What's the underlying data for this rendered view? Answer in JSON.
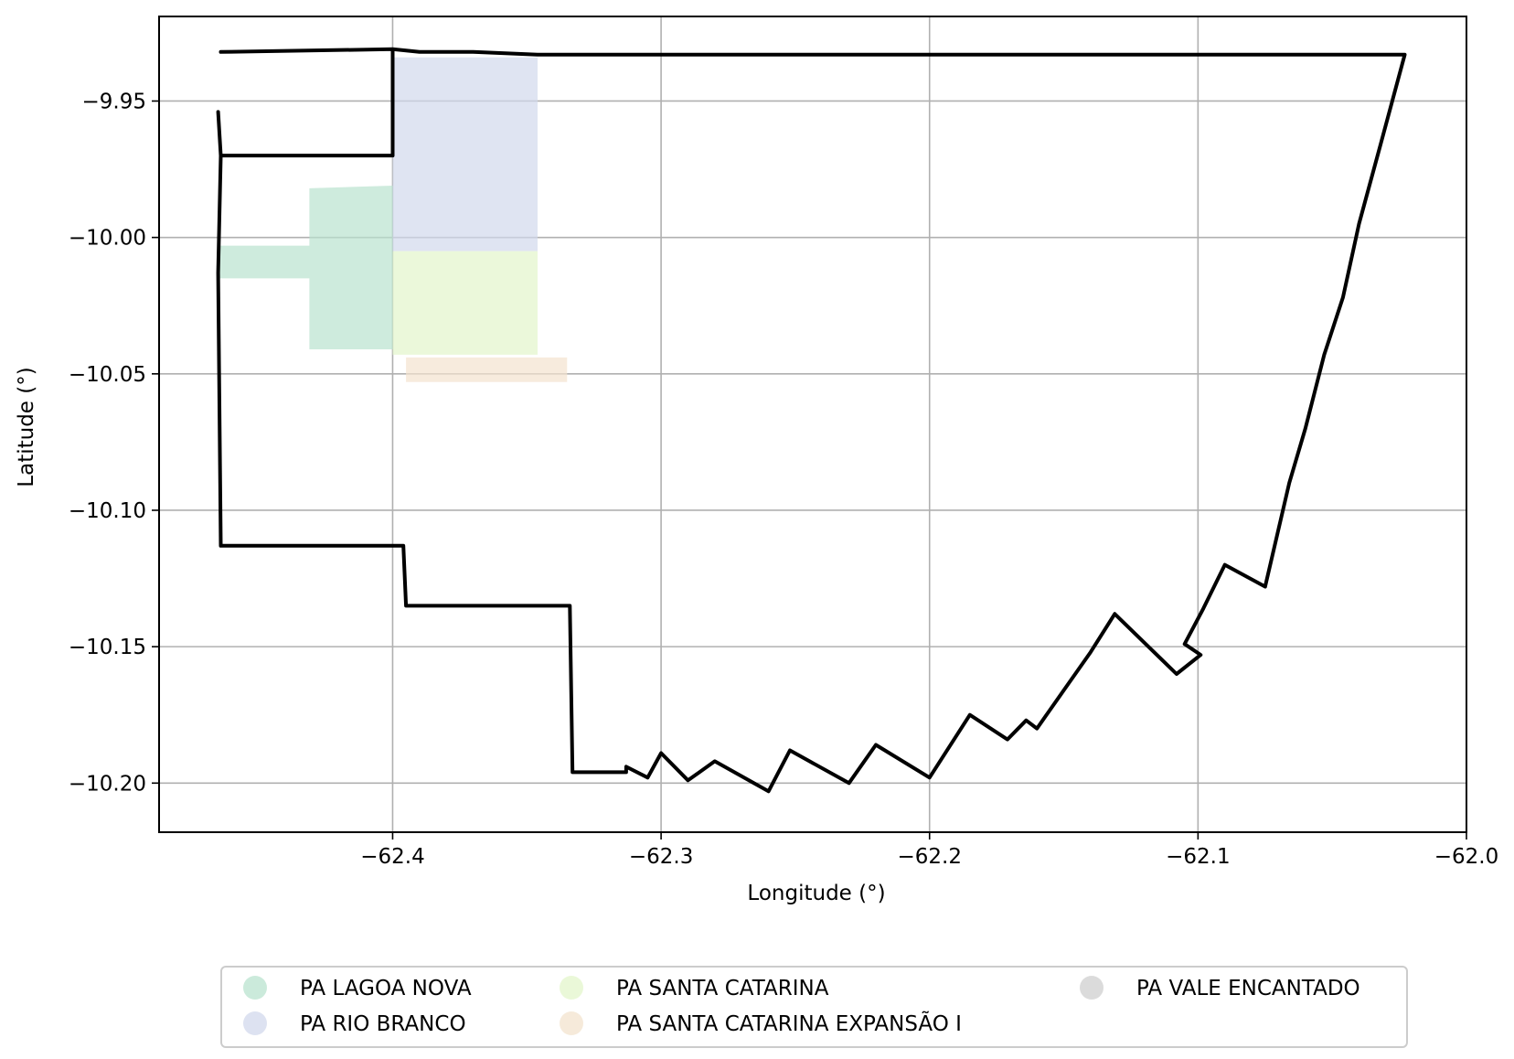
{
  "chart_data": {
    "type": "map",
    "xlabel": "Longitude (°)",
    "ylabel": "Latitude (°)",
    "xlim": [
      -62.487,
      -62.0
    ],
    "ylim": [
      -10.218,
      -9.919
    ],
    "x_ticks": [
      -62.4,
      -62.3,
      -62.2,
      -62.1,
      -62.0
    ],
    "x_tick_labels": [
      "−62.4",
      "−62.3",
      "−62.2",
      "−62.1",
      "−62.0"
    ],
    "y_ticks": [
      -9.95,
      -10.0,
      -10.05,
      -10.1,
      -10.15,
      -10.2
    ],
    "y_tick_labels": [
      "−9.95",
      "−10.00",
      "−10.05",
      "−10.10",
      "−10.15",
      "−10.20"
    ],
    "grid": true,
    "legend_position": "bottom-center",
    "boundary": {
      "color": "#000000",
      "coordinates": [
        [
          -62.464,
          -9.932
        ],
        [
          -62.4,
          -9.931
        ],
        [
          -62.39,
          -9.932
        ],
        [
          -62.37,
          -9.932
        ],
        [
          -62.346,
          -9.933
        ],
        [
          -62.3,
          -9.933
        ],
        [
          -62.2,
          -9.933
        ],
        [
          -62.1,
          -9.933
        ],
        [
          -62.023,
          -9.933
        ],
        [
          -62.032,
          -9.966
        ],
        [
          -62.04,
          -9.995
        ],
        [
          -62.046,
          -10.022
        ],
        [
          -62.053,
          -10.043
        ],
        [
          -62.06,
          -10.07
        ],
        [
          -62.066,
          -10.09
        ],
        [
          -62.075,
          -10.128
        ],
        [
          -62.09,
          -10.12
        ],
        [
          -62.098,
          -10.136
        ],
        [
          -62.105,
          -10.149
        ],
        [
          -62.099,
          -10.153
        ],
        [
          -62.108,
          -10.16
        ],
        [
          -62.131,
          -10.138
        ],
        [
          -62.14,
          -10.152
        ],
        [
          -62.15,
          -10.166
        ],
        [
          -62.16,
          -10.18
        ],
        [
          -62.164,
          -10.177
        ],
        [
          -62.171,
          -10.184
        ],
        [
          -62.185,
          -10.175
        ],
        [
          -62.2,
          -10.198
        ],
        [
          -62.2,
          -10.198
        ],
        [
          -62.22,
          -10.186
        ],
        [
          -62.23,
          -10.2
        ],
        [
          -62.252,
          -10.188
        ],
        [
          -62.26,
          -10.203
        ],
        [
          -62.28,
          -10.192
        ],
        [
          -62.29,
          -10.199
        ],
        [
          -62.3,
          -10.189
        ],
        [
          -62.305,
          -10.198
        ],
        [
          -62.313,
          -10.194
        ],
        [
          -62.313,
          -10.196
        ],
        [
          -62.333,
          -10.196
        ],
        [
          -62.334,
          -10.135
        ],
        [
          -62.395,
          -10.135
        ],
        [
          -62.396,
          -10.113
        ],
        [
          -62.464,
          -10.113
        ],
        [
          -62.465,
          -10.013
        ],
        [
          -62.464,
          -9.97
        ],
        [
          -62.465,
          -9.954
        ]
      ],
      "spur": [
        [
          -62.464,
          -9.97
        ],
        [
          -62.4,
          -9.97
        ],
        [
          -62.4,
          -9.931
        ]
      ]
    },
    "series": [
      {
        "name": "PA LAGOA NOVA",
        "color": "#b9e3cf",
        "polygon": [
          [
            -62.465,
            -10.003
          ],
          [
            -62.431,
            -10.003
          ],
          [
            -62.431,
            -9.982
          ],
          [
            -62.4,
            -9.981
          ],
          [
            -62.4,
            -10.041
          ],
          [
            -62.431,
            -10.041
          ],
          [
            -62.431,
            -10.015
          ],
          [
            -62.465,
            -10.015
          ]
        ]
      },
      {
        "name": "PA RIO BRANCO",
        "color": "#d1d8ec",
        "polygon": [
          [
            -62.4,
            -9.934
          ],
          [
            -62.346,
            -9.934
          ],
          [
            -62.346,
            -10.005
          ],
          [
            -62.4,
            -10.005
          ]
        ]
      },
      {
        "name": "PA SANTA CATARINA",
        "color": "#e3f5cb",
        "polygon": [
          [
            -62.4,
            -10.005
          ],
          [
            -62.346,
            -10.005
          ],
          [
            -62.346,
            -10.043
          ],
          [
            -62.4,
            -10.043
          ]
        ]
      },
      {
        "name": "PA SANTA CATARINA EXPANSÃO I",
        "color": "#f3e3ce",
        "polygon": [
          [
            -62.395,
            -10.044
          ],
          [
            -62.335,
            -10.044
          ],
          [
            -62.335,
            -10.053
          ],
          [
            -62.395,
            -10.053
          ]
        ]
      },
      {
        "name": "PA VALE ENCANTADO",
        "color": "#cfcfcf",
        "polygon": []
      }
    ]
  }
}
